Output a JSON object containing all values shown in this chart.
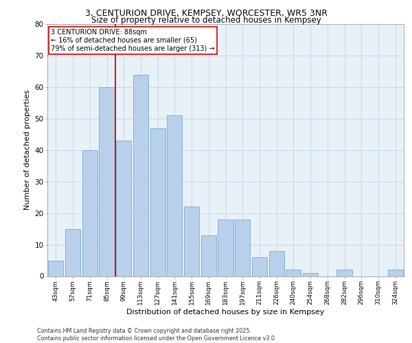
{
  "title_line1": "3, CENTURION DRIVE, KEMPSEY, WORCESTER, WR5 3NR",
  "title_line2": "Size of property relative to detached houses in Kempsey",
  "xlabel": "Distribution of detached houses by size in Kempsey",
  "ylabel": "Number of detached properties",
  "categories": [
    "43sqm",
    "57sqm",
    "71sqm",
    "85sqm",
    "99sqm",
    "113sqm",
    "127sqm",
    "141sqm",
    "155sqm",
    "169sqm",
    "183sqm",
    "197sqm",
    "211sqm",
    "226sqm",
    "240sqm",
    "254sqm",
    "268sqm",
    "282sqm",
    "296sqm",
    "310sqm",
    "324sqm"
  ],
  "values": [
    5,
    15,
    40,
    60,
    43,
    64,
    47,
    51,
    22,
    13,
    18,
    18,
    6,
    8,
    2,
    1,
    0,
    2,
    0,
    0,
    2
  ],
  "bar_color": "#b8d0ea",
  "bar_edge_color": "#7aaad0",
  "grid_color": "#c8d8e8",
  "background_color": "#e8f0f8",
  "vline_color": "#cc0000",
  "annotation_text": "3 CENTURION DRIVE: 88sqm\n← 16% of detached houses are smaller (65)\n79% of semi-detached houses are larger (313) →",
  "annotation_box_color": "#ffffff",
  "annotation_box_edge": "#cc0000",
  "footer_text": "Contains HM Land Registry data © Crown copyright and database right 2025.\nContains public sector information licensed under the Open Government Licence v3.0.",
  "ylim": [
    0,
    80
  ],
  "yticks": [
    0,
    10,
    20,
    30,
    40,
    50,
    60,
    70,
    80
  ],
  "vline_pos": 3.5
}
